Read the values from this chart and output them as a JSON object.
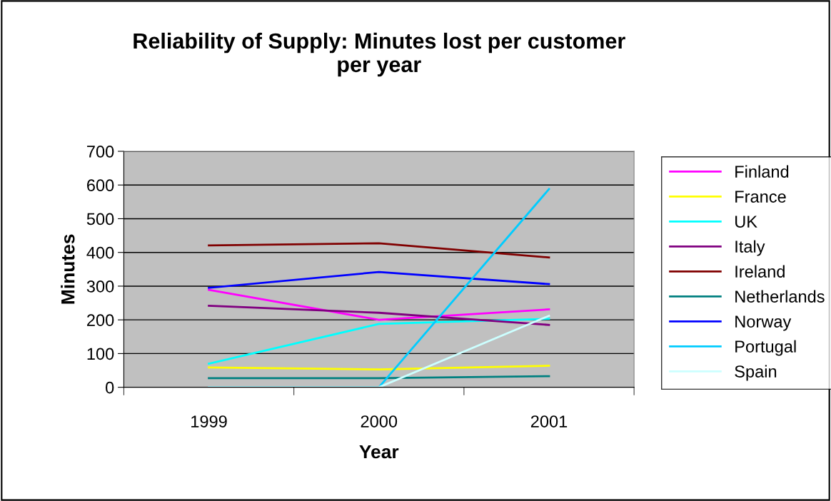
{
  "chart_data": {
    "type": "line",
    "title": "Reliability of Supply: Minutes lost per customer\nper year",
    "xlabel": "Year",
    "ylabel": "Minutes",
    "categories": [
      "1999",
      "2000",
      "2001"
    ],
    "series": [
      {
        "name": "Finland",
        "color": "#ff00ff",
        "values": [
          289,
          200,
          231
        ]
      },
      {
        "name": "France",
        "color": "#ffff00",
        "values": [
          59,
          53,
          64
        ]
      },
      {
        "name": "UK",
        "color": "#00ffff",
        "values": [
          70,
          188,
          203
        ]
      },
      {
        "name": "Italy",
        "color": "#800080",
        "values": [
          242,
          221,
          185
        ]
      },
      {
        "name": "Ireland",
        "color": "#800000",
        "values": [
          421,
          427,
          385
        ]
      },
      {
        "name": "Netherlands",
        "color": "#008080",
        "values": [
          27,
          27,
          33
        ]
      },
      {
        "name": "Norway",
        "color": "#0000ff",
        "values": [
          295,
          342,
          306
        ]
      },
      {
        "name": "Portugal",
        "color": "#00ccff",
        "values": [
          0,
          0,
          588
        ]
      },
      {
        "name": "Spain",
        "color": "#ccffff",
        "values": [
          0,
          0,
          212
        ]
      }
    ],
    "ylim": [
      0,
      700
    ],
    "yticks": [
      0,
      100,
      200,
      300,
      400,
      500,
      600,
      700
    ],
    "grid": "y",
    "legend": "right",
    "marker": "none",
    "line_style": "solid"
  }
}
